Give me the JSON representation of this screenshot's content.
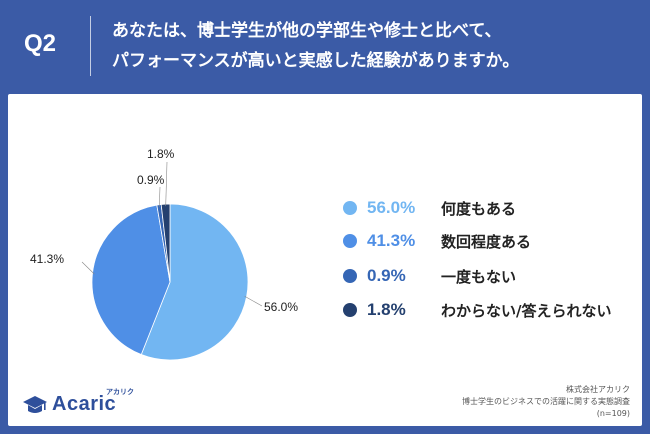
{
  "header": {
    "q_label": "Q2",
    "title_line1": "あなたは、博士学生が他の学部生や修士と比べて、",
    "title_line2": "パフォーマンスが高いと実感した経験がありますか。"
  },
  "chart_data": {
    "type": "pie",
    "start_angle_deg": 0,
    "direction": "clockwise",
    "categories": [
      "何度もある",
      "数回程度ある",
      "一度もない",
      "わからない/答えられない"
    ],
    "values": [
      56.0,
      41.3,
      0.9,
      1.8
    ],
    "value_labels": [
      "56.0%",
      "41.3%",
      "0.9%",
      "1.8%"
    ],
    "colors": [
      "#72b6f2",
      "#4f8fe6",
      "#3566b5",
      "#24406f"
    ],
    "legend_position": "right"
  },
  "legend": {
    "items": [
      {
        "pct": "56.0%",
        "label": "何度もある"
      },
      {
        "pct": "41.3%",
        "label": "数回程度ある"
      },
      {
        "pct": "0.9%",
        "label": "一度もない"
      },
      {
        "pct": "1.8%",
        "label": "わからない/答えられない"
      }
    ]
  },
  "footer": {
    "logo_text": "Acaric",
    "logo_sub": "アカリク",
    "source_line1": "株式会社アカリク",
    "source_line2": "博士学生のビジネスでの活躍に関する実態調査",
    "source_line3": "(n=109)"
  }
}
